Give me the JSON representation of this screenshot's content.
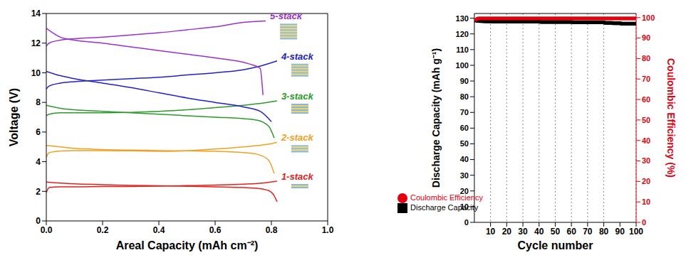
{
  "chart_data": [
    {
      "type": "line",
      "xlabel": "Areal Capacity (mAh cm⁻²)",
      "ylabel": "Voltage (V)",
      "xlim": [
        0,
        1.0
      ],
      "xticks": [
        {
          "value": 0,
          "label": "0.0"
        },
        0.2,
        0.4,
        0.6,
        0.8,
        {
          "value": 1,
          "label": "1.0"
        }
      ],
      "ylim": [
        0,
        14
      ],
      "yticks": [
        0,
        2,
        4,
        6,
        8,
        10,
        12,
        14
      ],
      "grid": false,
      "series": [
        {
          "name": "1-stack",
          "color": "#e3211c",
          "curves": [
            {
              "x": [
                0,
                0.01,
                0.05,
                0.1,
                0.2,
                0.3,
                0.4,
                0.5,
                0.6,
                0.7,
                0.78,
                0.82
              ],
              "values": [
                1.9,
                2.25,
                2.3,
                2.3,
                2.32,
                2.33,
                2.35,
                2.38,
                2.42,
                2.48,
                2.58,
                2.68
              ]
            },
            {
              "x": [
                0,
                0.05,
                0.1,
                0.2,
                0.3,
                0.4,
                0.5,
                0.6,
                0.7,
                0.75,
                0.79,
                0.81,
                0.82
              ],
              "values": [
                2.62,
                2.55,
                2.5,
                2.45,
                2.4,
                2.37,
                2.34,
                2.3,
                2.25,
                2.2,
                2.05,
                1.7,
                1.3
              ]
            }
          ]
        },
        {
          "name": "2-stack",
          "color": "#f0a020",
          "curves": [
            {
              "x": [
                0,
                0.01,
                0.05,
                0.1,
                0.2,
                0.3,
                0.4,
                0.5,
                0.6,
                0.7,
                0.78,
                0.82
              ],
              "values": [
                4.3,
                4.6,
                4.72,
                4.75,
                4.75,
                4.73,
                4.7,
                4.74,
                4.85,
                5.0,
                5.15,
                5.3
              ]
            },
            {
              "x": [
                0,
                0.05,
                0.1,
                0.2,
                0.3,
                0.4,
                0.5,
                0.6,
                0.7,
                0.75,
                0.79,
                0.81
              ],
              "values": [
                5.1,
                5.0,
                4.9,
                4.82,
                4.78,
                4.75,
                4.73,
                4.7,
                4.62,
                4.5,
                4.1,
                3.2
              ]
            }
          ]
        },
        {
          "name": "3-stack",
          "color": "#2a9a2a",
          "curves": [
            {
              "x": [
                0,
                0.01,
                0.05,
                0.1,
                0.2,
                0.3,
                0.4,
                0.5,
                0.6,
                0.7,
                0.78,
                0.82
              ],
              "values": [
                7.1,
                7.2,
                7.3,
                7.3,
                7.3,
                7.32,
                7.4,
                7.5,
                7.65,
                7.8,
                7.98,
                8.1
              ]
            },
            {
              "x": [
                0,
                0.05,
                0.1,
                0.2,
                0.3,
                0.4,
                0.5,
                0.6,
                0.7,
                0.75,
                0.79,
                0.81
              ],
              "values": [
                7.8,
                7.6,
                7.5,
                7.4,
                7.3,
                7.2,
                7.1,
                7.0,
                6.9,
                6.8,
                6.4,
                5.6
              ]
            }
          ]
        },
        {
          "name": "4-stack",
          "color": "#2020d0",
          "curves": [
            {
              "x": [
                0,
                0.01,
                0.05,
                0.1,
                0.2,
                0.3,
                0.4,
                0.5,
                0.6,
                0.7,
                0.75,
                0.82
              ],
              "values": [
                8.9,
                9.1,
                9.3,
                9.4,
                9.5,
                9.6,
                9.7,
                9.85,
                10.0,
                10.2,
                10.4,
                10.8
              ]
            },
            {
              "x": [
                0,
                0.05,
                0.1,
                0.2,
                0.3,
                0.4,
                0.5,
                0.6,
                0.7,
                0.76,
                0.8
              ],
              "values": [
                10.1,
                9.8,
                9.6,
                9.3,
                9.0,
                8.65,
                8.3,
                8.0,
                7.7,
                7.4,
                6.7
              ]
            }
          ]
        },
        {
          "name": "5-stack",
          "color": "#9b30d0",
          "curves": [
            {
              "x": [
                0,
                0.01,
                0.05,
                0.1,
                0.2,
                0.3,
                0.4,
                0.5,
                0.6,
                0.7,
                0.78
              ],
              "values": [
                11.8,
                12.0,
                12.2,
                12.3,
                12.4,
                12.55,
                12.7,
                12.9,
                13.1,
                13.4,
                13.5
              ]
            },
            {
              "x": [
                0,
                0.05,
                0.1,
                0.2,
                0.3,
                0.4,
                0.5,
                0.6,
                0.72,
                0.76,
                0.77
              ],
              "values": [
                13.0,
                12.4,
                12.2,
                12.0,
                11.75,
                11.5,
                11.25,
                11.0,
                10.6,
                10.3,
                8.5
              ]
            }
          ]
        }
      ]
    },
    {
      "type": "line",
      "xlabel": "Cycle number",
      "ylabel": "Discharge Capacity (mAh g⁻¹)",
      "y2label": "Coulombic Efficiency (%)",
      "xlim": [
        0,
        100
      ],
      "xticks": [
        10,
        20,
        30,
        40,
        50,
        60,
        70,
        80,
        90,
        100
      ],
      "ylim": [
        0,
        133
      ],
      "yticks": [
        0,
        10,
        20,
        30,
        40,
        50,
        60,
        70,
        80,
        90,
        100,
        110,
        120,
        130
      ],
      "y2lim": [
        0,
        102
      ],
      "y2ticks": [
        0,
        10,
        20,
        30,
        40,
        50,
        60,
        70,
        80,
        90,
        100
      ],
      "grid": "x",
      "legend": "lower left",
      "x": [
        1,
        2,
        3,
        4,
        5,
        6,
        7,
        8,
        9,
        10,
        11,
        12,
        13,
        14,
        15,
        16,
        17,
        18,
        19,
        20,
        21,
        22,
        23,
        24,
        25,
        26,
        27,
        28,
        29,
        30,
        31,
        32,
        33,
        34,
        35,
        36,
        37,
        38,
        39,
        40,
        41,
        42,
        43,
        44,
        45,
        46,
        47,
        48,
        49,
        50,
        51,
        52,
        53,
        54,
        55,
        56,
        57,
        58,
        59,
        60,
        61,
        62,
        63,
        64,
        65,
        66,
        67,
        68,
        69,
        70,
        71,
        72,
        73,
        74,
        75,
        76,
        77,
        78,
        79,
        80,
        81,
        82,
        83,
        84,
        85,
        86,
        87,
        88,
        89,
        90,
        91,
        92,
        93,
        94,
        95,
        96,
        97,
        98,
        99,
        100
      ],
      "series": [
        {
          "name": "Discharge Capacity",
          "color": "#000000",
          "marker": "square",
          "values": [
            128.5,
            128.3,
            128.2,
            128.2,
            128.1,
            128.1,
            128.0,
            128.0,
            128.0,
            128.0,
            127.9,
            127.9,
            127.9,
            127.9,
            127.9,
            127.9,
            127.9,
            127.9,
            127.9,
            127.9,
            127.8,
            127.8,
            127.8,
            127.8,
            127.8,
            127.8,
            127.8,
            127.8,
            127.8,
            127.8,
            127.8,
            127.8,
            127.8,
            127.8,
            127.8,
            127.8,
            127.8,
            127.8,
            127.8,
            127.8,
            127.6,
            127.6,
            127.6,
            127.6,
            127.6,
            127.6,
            127.6,
            127.6,
            127.6,
            127.6,
            127.6,
            127.6,
            127.6,
            127.6,
            127.6,
            127.6,
            127.6,
            127.6,
            127.6,
            127.6,
            127.4,
            127.4,
            127.4,
            127.4,
            127.4,
            127.4,
            127.4,
            127.4,
            127.4,
            127.4,
            127.4,
            127.4,
            127.4,
            127.4,
            127.4,
            127.4,
            127.4,
            127.4,
            127.4,
            127.4,
            127.0,
            127.0,
            127.0,
            127.0,
            127.0,
            126.8,
            126.8,
            126.8,
            126.8,
            126.8,
            126.5,
            126.5,
            126.5,
            126.5,
            126.5,
            126.5,
            126.5,
            126.5,
            126.5,
            126.5
          ]
        },
        {
          "name": "Coulombic Efficiency",
          "color": "#e3000f",
          "marker": "circle",
          "axis": "y2",
          "values": [
            99.0,
            99.5,
            99.6,
            99.6,
            99.6,
            99.6,
            99.6,
            99.6,
            99.6,
            99.6,
            99.6,
            99.6,
            99.6,
            99.6,
            99.6,
            99.6,
            99.6,
            99.6,
            99.6,
            99.6,
            99.6,
            99.6,
            99.6,
            99.6,
            99.6,
            99.6,
            99.6,
            99.6,
            99.6,
            99.6,
            99.6,
            99.6,
            99.6,
            99.6,
            99.6,
            99.6,
            99.6,
            99.6,
            99.6,
            99.6,
            99.6,
            99.6,
            99.6,
            99.6,
            99.6,
            99.6,
            99.6,
            99.6,
            99.6,
            99.6,
            99.6,
            99.6,
            99.6,
            99.6,
            99.6,
            99.6,
            99.6,
            99.6,
            99.6,
            99.6,
            99.6,
            99.6,
            99.6,
            99.6,
            99.6,
            99.6,
            99.6,
            99.6,
            99.6,
            99.6,
            99.6,
            99.6,
            99.6,
            99.6,
            99.6,
            99.6,
            99.6,
            99.6,
            99.6,
            99.6,
            99.6,
            99.6,
            99.6,
            99.6,
            99.6,
            99.6,
            99.6,
            99.6,
            99.6,
            99.6,
            99.6,
            99.6,
            99.6,
            99.6,
            99.6,
            99.6,
            99.6,
            99.6,
            99.6,
            99.6
          ]
        }
      ]
    }
  ]
}
